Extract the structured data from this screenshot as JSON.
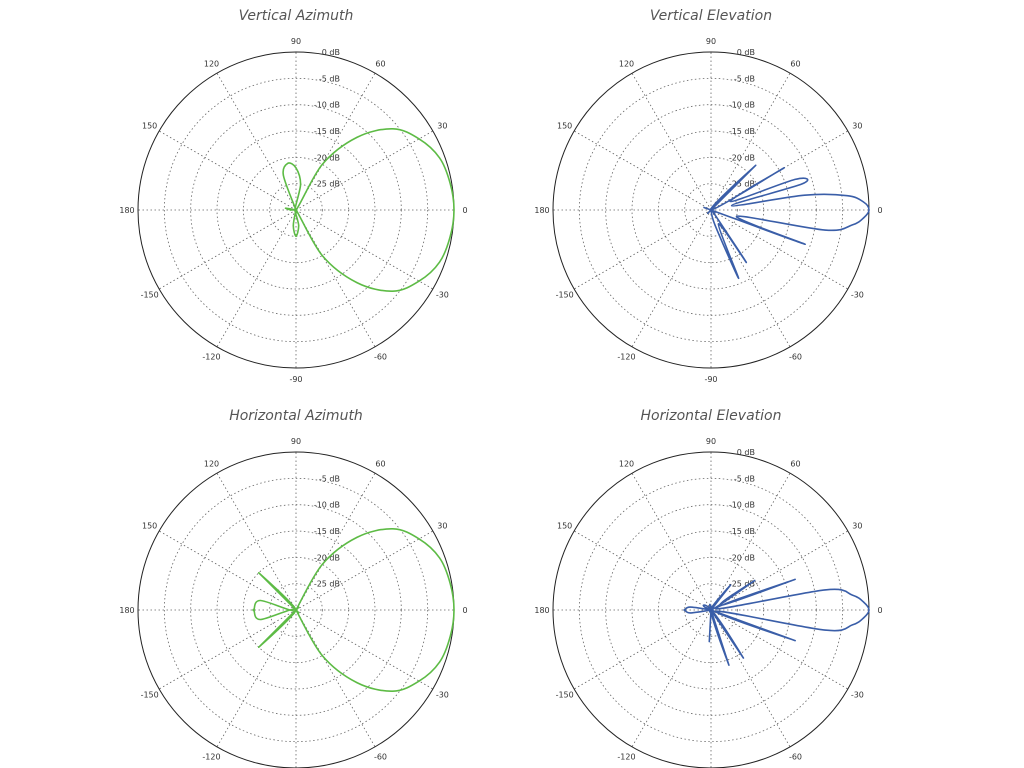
{
  "chart_data": [
    {
      "type": "polar",
      "title": "Vertical Azimuth",
      "color": "#5dbb45",
      "radial_ticks": [
        "0 dB",
        "-5 dB",
        "-10 dB",
        "-15 dB",
        "-20 dB",
        "-25 dB"
      ],
      "radial_range_db": [
        -30,
        0
      ],
      "angle_ticks": [
        "0",
        "30",
        "60",
        "90",
        "120",
        "150",
        "180",
        "-150",
        "-120",
        "-90",
        "-60",
        "-30"
      ],
      "grid": true,
      "pattern": [
        {
          "angle": -180,
          "db": -29
        },
        {
          "angle": -160,
          "db": -30
        },
        {
          "angle": -140,
          "db": -30
        },
        {
          "angle": -120,
          "db": -30
        },
        {
          "angle": -100,
          "db": -27
        },
        {
          "angle": -90,
          "db": -25
        },
        {
          "angle": -80,
          "db": -27
        },
        {
          "angle": -70,
          "db": -30
        },
        {
          "angle": -60,
          "db": -20
        },
        {
          "angle": -50,
          "db": -12
        },
        {
          "angle": -40,
          "db": -6
        },
        {
          "angle": -30,
          "db": -3
        },
        {
          "angle": -20,
          "db": -1
        },
        {
          "angle": -10,
          "db": -0.3
        },
        {
          "angle": 0,
          "db": 0
        },
        {
          "angle": 10,
          "db": -0.3
        },
        {
          "angle": 20,
          "db": -1
        },
        {
          "angle": 30,
          "db": -3
        },
        {
          "angle": 40,
          "db": -6
        },
        {
          "angle": 50,
          "db": -12
        },
        {
          "angle": 60,
          "db": -20
        },
        {
          "angle": 70,
          "db": -30
        },
        {
          "angle": 80,
          "db": -25
        },
        {
          "angle": 90,
          "db": -22
        },
        {
          "angle": 100,
          "db": -21
        },
        {
          "angle": 110,
          "db": -23
        },
        {
          "angle": 120,
          "db": -30
        },
        {
          "angle": 140,
          "db": -30
        },
        {
          "angle": 160,
          "db": -30
        },
        {
          "angle": 170,
          "db": -28
        },
        {
          "angle": 180,
          "db": -29
        }
      ]
    },
    {
      "type": "polar",
      "title": "Vertical Elevation",
      "color": "#3a5ea8",
      "radial_ticks": [
        "0 dB",
        "-5 dB",
        "-10 dB",
        "-15 dB",
        "-20 dB",
        "-25 dB"
      ],
      "radial_range_db": [
        -30,
        0
      ],
      "angle_ticks": [
        "0",
        "30",
        "60",
        "90",
        "120",
        "150",
        "180",
        "-150",
        "-120",
        "-90",
        "-60",
        "-30"
      ],
      "grid": true,
      "pattern": [
        {
          "angle": -180,
          "db": -30
        },
        {
          "angle": -120,
          "db": -30
        },
        {
          "angle": -90,
          "db": -30
        },
        {
          "angle": -85,
          "db": -30
        },
        {
          "angle": -75,
          "db": -27
        },
        {
          "angle": -68,
          "db": -16
        },
        {
          "angle": -62,
          "db": -27
        },
        {
          "angle": -56,
          "db": -18
        },
        {
          "angle": -50,
          "db": -29
        },
        {
          "angle": -46,
          "db": -29
        },
        {
          "angle": -40,
          "db": -30
        },
        {
          "angle": -34,
          "db": -30
        },
        {
          "angle": -27,
          "db": -30
        },
        {
          "angle": -20,
          "db": -11
        },
        {
          "angle": -14,
          "db": -25
        },
        {
          "angle": -10,
          "db": -8
        },
        {
          "angle": -6,
          "db": -3
        },
        {
          "angle": -3,
          "db": -1
        },
        {
          "angle": 0,
          "db": 0
        },
        {
          "angle": 3,
          "db": -1
        },
        {
          "angle": 6,
          "db": -4
        },
        {
          "angle": 9,
          "db": -12
        },
        {
          "angle": 12,
          "db": -26
        },
        {
          "angle": 16,
          "db": -12
        },
        {
          "angle": 20,
          "db": -13
        },
        {
          "angle": 24,
          "db": -26
        },
        {
          "angle": 30,
          "db": -14
        },
        {
          "angle": 36,
          "db": -30
        },
        {
          "angle": 45,
          "db": -18
        },
        {
          "angle": 52,
          "db": -30
        },
        {
          "angle": 60,
          "db": -30
        },
        {
          "angle": 90,
          "db": -30
        },
        {
          "angle": 180,
          "db": -30
        }
      ]
    },
    {
      "type": "polar",
      "title": "Horizontal Azimuth",
      "color": "#5dbb45",
      "radial_ticks": [
        "-5 dB",
        "-10 dB",
        "-15 dB",
        "-20 dB",
        "-25 dB"
      ],
      "radial_range_db": [
        -30,
        0
      ],
      "angle_ticks": [
        "0",
        "30",
        "60",
        "90",
        "120",
        "150",
        "180",
        "-150",
        "-120",
        "-90",
        "-60",
        "-30"
      ],
      "grid": true,
      "pattern": [
        {
          "angle": -180,
          "db": -22
        },
        {
          "angle": -165,
          "db": -23
        },
        {
          "angle": -150,
          "db": -30
        },
        {
          "angle": -135,
          "db": -20
        },
        {
          "angle": -120,
          "db": -30
        },
        {
          "angle": -90,
          "db": -30
        },
        {
          "angle": -70,
          "db": -30
        },
        {
          "angle": -60,
          "db": -20
        },
        {
          "angle": -50,
          "db": -12
        },
        {
          "angle": -40,
          "db": -6
        },
        {
          "angle": -30,
          "db": -3
        },
        {
          "angle": -20,
          "db": -1
        },
        {
          "angle": -10,
          "db": -0.3
        },
        {
          "angle": 0,
          "db": 0
        },
        {
          "angle": 10,
          "db": -0.3
        },
        {
          "angle": 20,
          "db": -1
        },
        {
          "angle": 30,
          "db": -3
        },
        {
          "angle": 40,
          "db": -6
        },
        {
          "angle": 50,
          "db": -12
        },
        {
          "angle": 60,
          "db": -20
        },
        {
          "angle": 70,
          "db": -30
        },
        {
          "angle": 90,
          "db": -30
        },
        {
          "angle": 120,
          "db": -30
        },
        {
          "angle": 135,
          "db": -20
        },
        {
          "angle": 150,
          "db": -30
        },
        {
          "angle": 165,
          "db": -23
        },
        {
          "angle": 180,
          "db": -22
        }
      ]
    },
    {
      "type": "polar",
      "title": "Horizontal Elevation",
      "color": "#3a5ea8",
      "radial_ticks": [
        "0 dB",
        "-5 dB",
        "-10 dB",
        "-15 dB",
        "-20 dB",
        "-25 dB"
      ],
      "radial_range_db": [
        -30,
        0
      ],
      "angle_ticks": [
        "0",
        "30",
        "60",
        "90",
        "120",
        "150",
        "180",
        "-150",
        "-120",
        "-90",
        "-60",
        "-30"
      ],
      "grid": true,
      "pattern": [
        {
          "angle": -180,
          "db": -25
        },
        {
          "angle": -172,
          "db": -26
        },
        {
          "angle": -165,
          "db": -30
        },
        {
          "angle": -120,
          "db": -30
        },
        {
          "angle": -98,
          "db": -30
        },
        {
          "angle": -93,
          "db": -24
        },
        {
          "angle": -88,
          "db": -30
        },
        {
          "angle": -80,
          "db": -30
        },
        {
          "angle": -72,
          "db": -19
        },
        {
          "angle": -64,
          "db": -30
        },
        {
          "angle": -56,
          "db": -19
        },
        {
          "angle": -48,
          "db": -30
        },
        {
          "angle": -30,
          "db": -30
        },
        {
          "angle": -20,
          "db": -13
        },
        {
          "angle": -14,
          "db": -29
        },
        {
          "angle": -10,
          "db": -8
        },
        {
          "angle": -6,
          "db": -3
        },
        {
          "angle": -3,
          "db": -1
        },
        {
          "angle": 0,
          "db": 0
        },
        {
          "angle": 3,
          "db": -1
        },
        {
          "angle": 6,
          "db": -3
        },
        {
          "angle": 10,
          "db": -8
        },
        {
          "angle": 14,
          "db": -29
        },
        {
          "angle": 20,
          "db": -13
        },
        {
          "angle": 26,
          "db": -28
        },
        {
          "angle": 34,
          "db": -20
        },
        {
          "angle": 42,
          "db": -30
        },
        {
          "angle": 52,
          "db": -24
        },
        {
          "angle": 60,
          "db": -30
        },
        {
          "angle": 90,
          "db": -30
        },
        {
          "angle": 165,
          "db": -30
        },
        {
          "angle": 172,
          "db": -26
        },
        {
          "angle": 180,
          "db": -25
        }
      ]
    }
  ]
}
